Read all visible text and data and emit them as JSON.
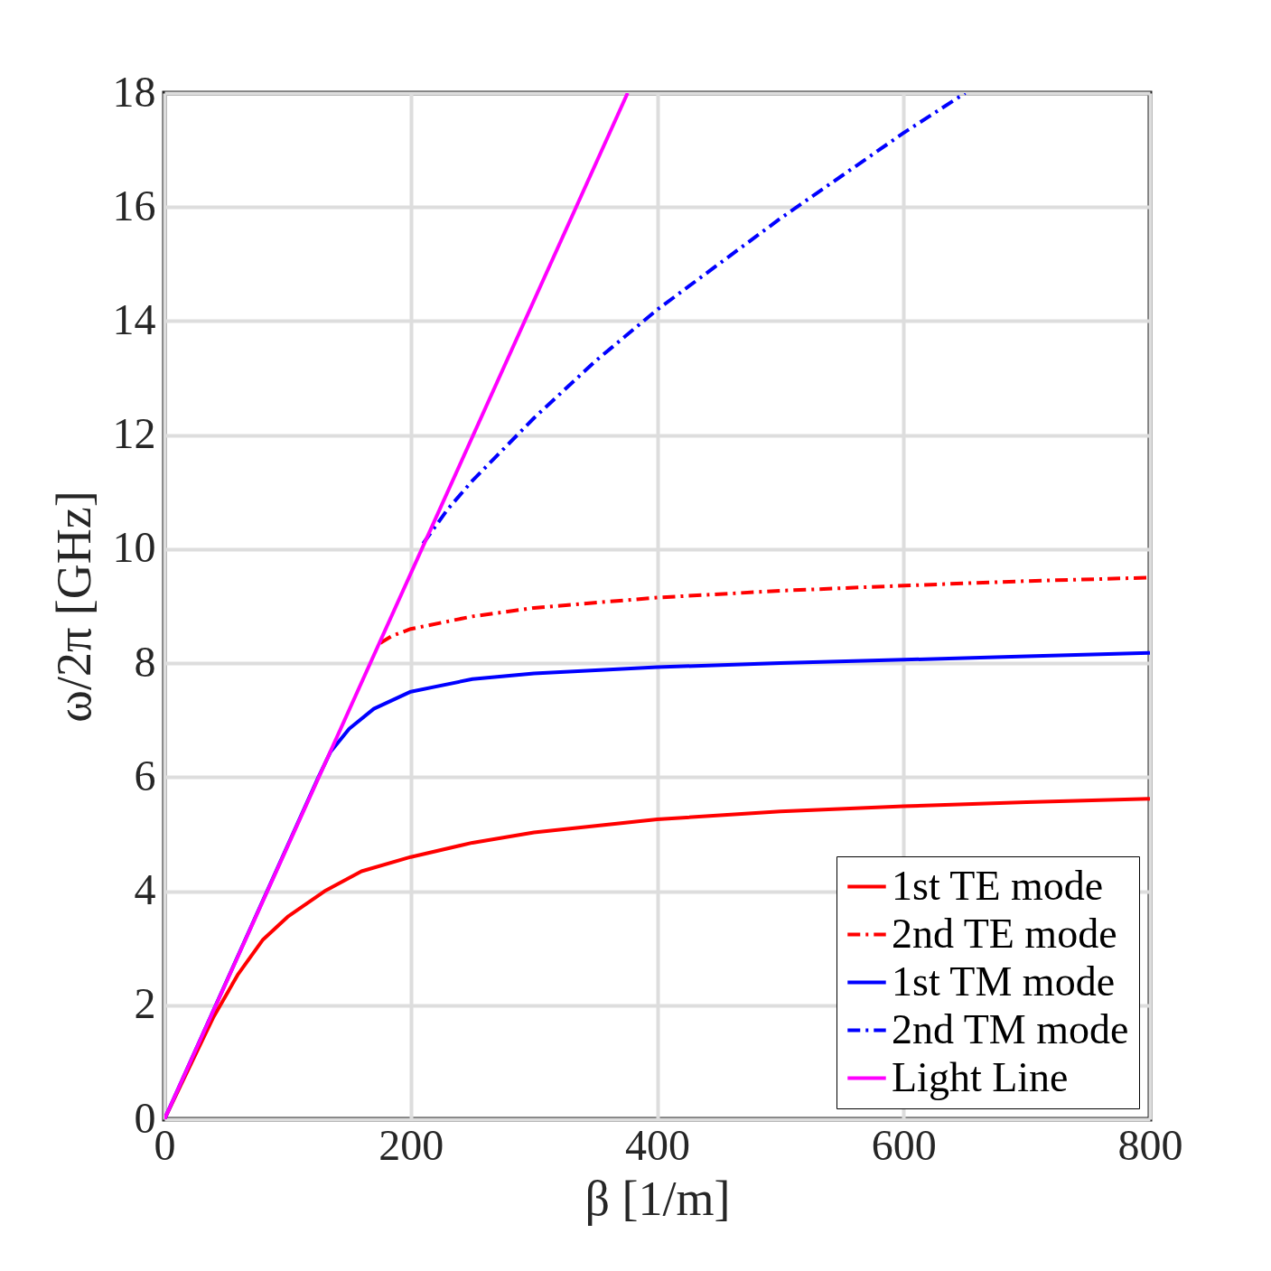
{
  "chart_data": {
    "type": "line",
    "xlabel": "β [1/m]",
    "ylabel": "ω/2π [GHz]",
    "xlim": [
      0,
      800
    ],
    "ylim": [
      0,
      18
    ],
    "xticks": [
      0,
      200,
      400,
      600,
      800
    ],
    "yticks": [
      0,
      2,
      4,
      6,
      8,
      10,
      12,
      14,
      16,
      18
    ],
    "grid": true,
    "legend": "bottom right",
    "series": [
      {
        "name": "1st TE mode",
        "color": "#ff0000",
        "line_style": "solid",
        "x": [
          0,
          40,
          60,
          80,
          100,
          130,
          160,
          200,
          250,
          300,
          400,
          500,
          600,
          700,
          800
        ],
        "values": [
          0,
          1.8,
          2.55,
          3.15,
          3.55,
          4.0,
          4.35,
          4.6,
          4.85,
          5.03,
          5.26,
          5.4,
          5.49,
          5.56,
          5.62
        ]
      },
      {
        "name": "2nd TE mode",
        "color": "#ff0000",
        "line_style": "dashed",
        "x": [
          175,
          185,
          200,
          250,
          300,
          400,
          500,
          600,
          700,
          800
        ],
        "values": [
          8.35,
          8.48,
          8.6,
          8.82,
          8.97,
          9.15,
          9.27,
          9.36,
          9.44,
          9.5
        ]
      },
      {
        "name": "1st TM mode",
        "color": "#0000ff",
        "line_style": "solid",
        "x": [
          0,
          125,
          135,
          150,
          170,
          200,
          250,
          300,
          400,
          500,
          600,
          700,
          800
        ],
        "values": [
          0,
          6.0,
          6.45,
          6.85,
          7.2,
          7.5,
          7.72,
          7.82,
          7.93,
          8.0,
          8.06,
          8.12,
          8.18
        ]
      },
      {
        "name": "2nd TM mode",
        "color": "#0000ff",
        "line_style": "dashed",
        "x": [
          210,
          230,
          250,
          300,
          350,
          400,
          450,
          500,
          550,
          600,
          650
        ],
        "values": [
          10.1,
          10.7,
          11.2,
          12.3,
          13.3,
          14.2,
          15.0,
          15.8,
          16.55,
          17.3,
          18.0
        ]
      },
      {
        "name": "Light Line",
        "color": "#ff00ff",
        "line_style": "solid",
        "x": [
          0,
          376
        ],
        "values": [
          0,
          18
        ]
      }
    ]
  }
}
